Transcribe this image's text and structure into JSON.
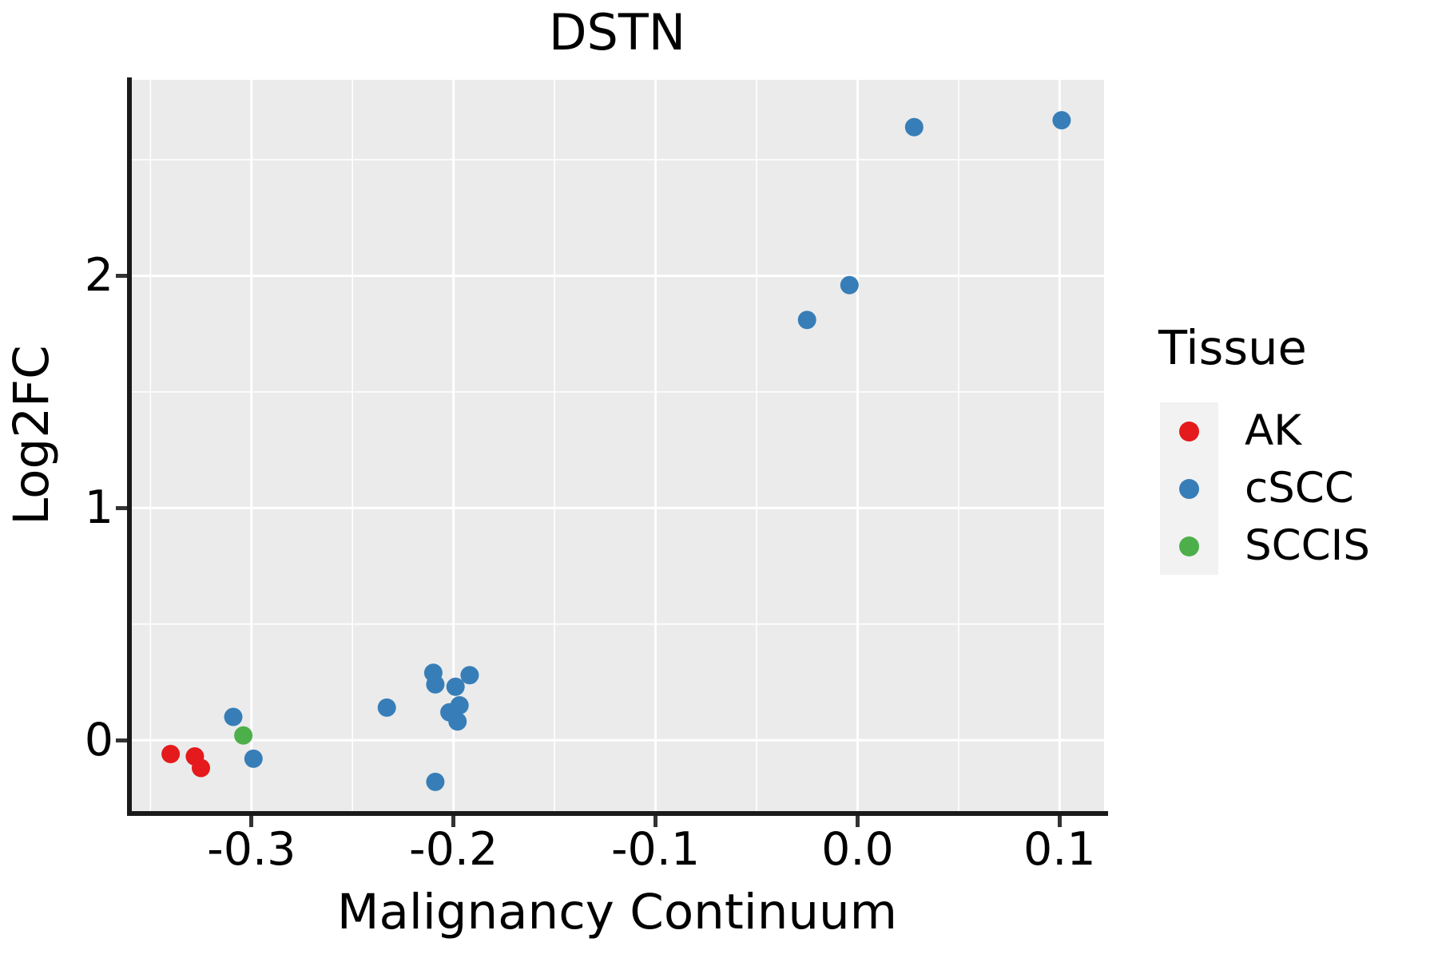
{
  "figure": {
    "title": "DSTN",
    "x_axis_title": "Malignancy Continuum",
    "y_axis_title": "Log2FC"
  },
  "legend": {
    "title": "Tissue",
    "items": [
      {
        "label": "AK",
        "color": "#E41A1C"
      },
      {
        "label": "cSCC",
        "color": "#377EB8"
      },
      {
        "label": "SCCIS",
        "color": "#4DAF4A"
      }
    ]
  },
  "colors": {
    "panel_background": "#EBEBEB",
    "gridline": "#FFFFFF",
    "axis_line": "#1a1a1a",
    "tick_mark": "#333333",
    "text": "#000000",
    "legend_key_background": "#F2F2F2"
  },
  "chart_data": {
    "type": "scatter",
    "title": "DSTN",
    "xlabel": "Malignancy Continuum",
    "ylabel": "Log2FC",
    "legend_title": "Tissue",
    "legend_position": "right",
    "grid": "on",
    "xlim": [
      -0.36,
      0.122
    ],
    "ylim": [
      -0.316,
      2.844
    ],
    "x_ticks": {
      "values": [
        -0.3,
        -0.2,
        -0.1,
        0.0,
        0.1
      ],
      "labels": [
        "-0.3",
        "-0.2",
        "-0.1",
        "0.0",
        "0.1"
      ]
    },
    "y_ticks": {
      "values": [
        0,
        1,
        2
      ],
      "labels": [
        "0",
        "1",
        "2"
      ]
    },
    "x_minor_gridlines": [
      -0.35,
      -0.25,
      -0.15,
      -0.05,
      0.05
    ],
    "y_minor_gridlines": [
      0.5,
      1.5,
      2.5
    ],
    "marker_radius_px": 11.5,
    "series": [
      {
        "name": "AK",
        "color": "#E41A1C",
        "points": [
          [
            -0.34,
            -0.06
          ],
          [
            -0.328,
            -0.07
          ],
          [
            -0.325,
            -0.12
          ]
        ]
      },
      {
        "name": "cSCC",
        "color": "#377EB8",
        "points": [
          [
            -0.309,
            0.1
          ],
          [
            -0.299,
            -0.08
          ],
          [
            -0.233,
            0.14
          ],
          [
            -0.21,
            0.29
          ],
          [
            -0.209,
            0.24
          ],
          [
            -0.192,
            0.28
          ],
          [
            -0.199,
            0.23
          ],
          [
            -0.197,
            0.15
          ],
          [
            -0.202,
            0.12
          ],
          [
            -0.198,
            0.08
          ],
          [
            -0.209,
            -0.18
          ],
          [
            -0.025,
            1.81
          ],
          [
            -0.004,
            1.96
          ],
          [
            0.028,
            2.64
          ],
          [
            0.101,
            2.67
          ]
        ]
      },
      {
        "name": "SCCIS",
        "color": "#4DAF4A",
        "points": [
          [
            -0.304,
            0.02
          ]
        ]
      }
    ]
  }
}
